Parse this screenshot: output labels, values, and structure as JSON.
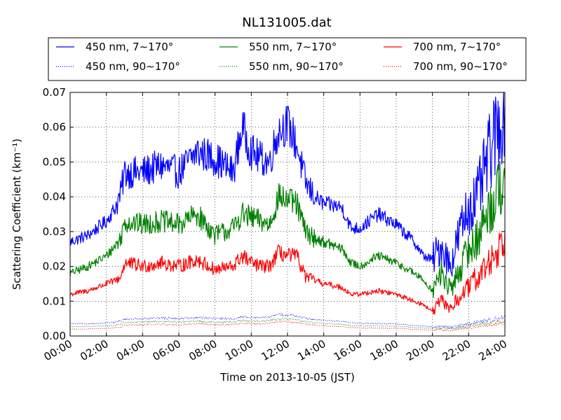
{
  "chart_data": {
    "type": "line",
    "title": "NL131005.dat",
    "xlabel": "Time on 2013-10-05 (JST)",
    "ylabel": "Scattering Coefficient (km⁻¹)",
    "xlim": [
      "00:00",
      "24:00"
    ],
    "ylim": [
      0,
      0.07
    ],
    "x_ticks": [
      "00:00",
      "02:00",
      "04:00",
      "06:00",
      "08:00",
      "10:00",
      "12:00",
      "14:00",
      "16:00",
      "18:00",
      "20:00",
      "22:00",
      "24:00"
    ],
    "y_ticks": [
      "0.00",
      "0.01",
      "0.02",
      "0.03",
      "0.04",
      "0.05",
      "0.06",
      "0.07"
    ],
    "grid": true,
    "legend_position": "top",
    "x_hours": [
      0,
      1,
      2,
      2.5,
      2.8,
      3,
      4,
      5,
      6,
      7,
      8,
      9,
      9.5,
      10,
      10.5,
      11,
      11.5,
      12,
      12.5,
      13,
      13.5,
      14,
      15,
      15.5,
      16,
      17,
      18,
      19,
      19.5,
      20,
      20.5,
      21,
      21.5,
      22,
      22.5,
      23,
      23.5,
      24
    ],
    "series": [
      {
        "name": "450 nm, 7∼170°",
        "color": "#0000ff",
        "style": "solid",
        "values": [
          0.027,
          0.029,
          0.033,
          0.037,
          0.041,
          0.047,
          0.047,
          0.049,
          0.047,
          0.053,
          0.051,
          0.047,
          0.06,
          0.053,
          0.051,
          0.05,
          0.059,
          0.061,
          0.055,
          0.044,
          0.04,
          0.038,
          0.037,
          0.031,
          0.031,
          0.035,
          0.032,
          0.027,
          0.023,
          0.022,
          0.026,
          0.02,
          0.03,
          0.037,
          0.04,
          0.05,
          0.058,
          0.066
        ]
      },
      {
        "name": "550 nm, 7∼170°",
        "color": "#008000",
        "style": "solid",
        "values": [
          0.018,
          0.02,
          0.023,
          0.026,
          0.028,
          0.033,
          0.032,
          0.033,
          0.032,
          0.035,
          0.029,
          0.031,
          0.035,
          0.034,
          0.033,
          0.032,
          0.04,
          0.039,
          0.038,
          0.03,
          0.028,
          0.027,
          0.025,
          0.021,
          0.02,
          0.023,
          0.021,
          0.018,
          0.016,
          0.013,
          0.018,
          0.013,
          0.019,
          0.025,
          0.028,
          0.035,
          0.04,
          0.047
        ]
      },
      {
        "name": "700 nm, 7∼170°",
        "color": "#ff0000",
        "style": "solid",
        "values": [
          0.012,
          0.013,
          0.015,
          0.016,
          0.017,
          0.021,
          0.02,
          0.021,
          0.02,
          0.022,
          0.019,
          0.02,
          0.023,
          0.021,
          0.02,
          0.02,
          0.024,
          0.023,
          0.023,
          0.017,
          0.016,
          0.015,
          0.014,
          0.012,
          0.012,
          0.013,
          0.012,
          0.01,
          0.009,
          0.007,
          0.01,
          0.008,
          0.011,
          0.014,
          0.017,
          0.02,
          0.024,
          0.029
        ]
      },
      {
        "name": "450 nm, 90∼170°",
        "color": "#0000ff",
        "style": "dotted",
        "values": [
          0.0035,
          0.0035,
          0.0037,
          0.004,
          0.0043,
          0.0048,
          0.005,
          0.0052,
          0.005,
          0.0053,
          0.005,
          0.005,
          0.0055,
          0.0053,
          0.0053,
          0.0055,
          0.0062,
          0.006,
          0.0058,
          0.005,
          0.0047,
          0.0045,
          0.0042,
          0.0038,
          0.0037,
          0.0036,
          0.0035,
          0.003,
          0.0028,
          0.0027,
          0.0028,
          0.0025,
          0.003,
          0.0035,
          0.004,
          0.0045,
          0.005,
          0.0055
        ]
      },
      {
        "name": "550 nm, 90∼170°",
        "color": "#008000",
        "style": "dotted",
        "values": [
          0.0027,
          0.0027,
          0.0029,
          0.0031,
          0.0034,
          0.0039,
          0.004,
          0.0042,
          0.004,
          0.0043,
          0.004,
          0.004,
          0.0045,
          0.0043,
          0.0043,
          0.0045,
          0.005,
          0.0049,
          0.0047,
          0.0041,
          0.0038,
          0.0036,
          0.0034,
          0.003,
          0.0029,
          0.0029,
          0.0028,
          0.0024,
          0.0023,
          0.0022,
          0.0023,
          0.002,
          0.0025,
          0.0029,
          0.0033,
          0.0037,
          0.0041,
          0.0045
        ]
      },
      {
        "name": "700 nm, 90∼170°",
        "color": "#ff0000",
        "style": "dotted",
        "values": [
          0.002,
          0.002,
          0.0022,
          0.0024,
          0.0026,
          0.0031,
          0.0032,
          0.0034,
          0.0032,
          0.0035,
          0.0032,
          0.0032,
          0.0037,
          0.0035,
          0.0035,
          0.0037,
          0.0042,
          0.0041,
          0.0039,
          0.0034,
          0.0031,
          0.0029,
          0.0027,
          0.0024,
          0.0023,
          0.0023,
          0.0022,
          0.0019,
          0.0018,
          0.0017,
          0.0018,
          0.0016,
          0.002,
          0.0023,
          0.0027,
          0.0031,
          0.0034,
          0.0038
        ]
      }
    ]
  }
}
